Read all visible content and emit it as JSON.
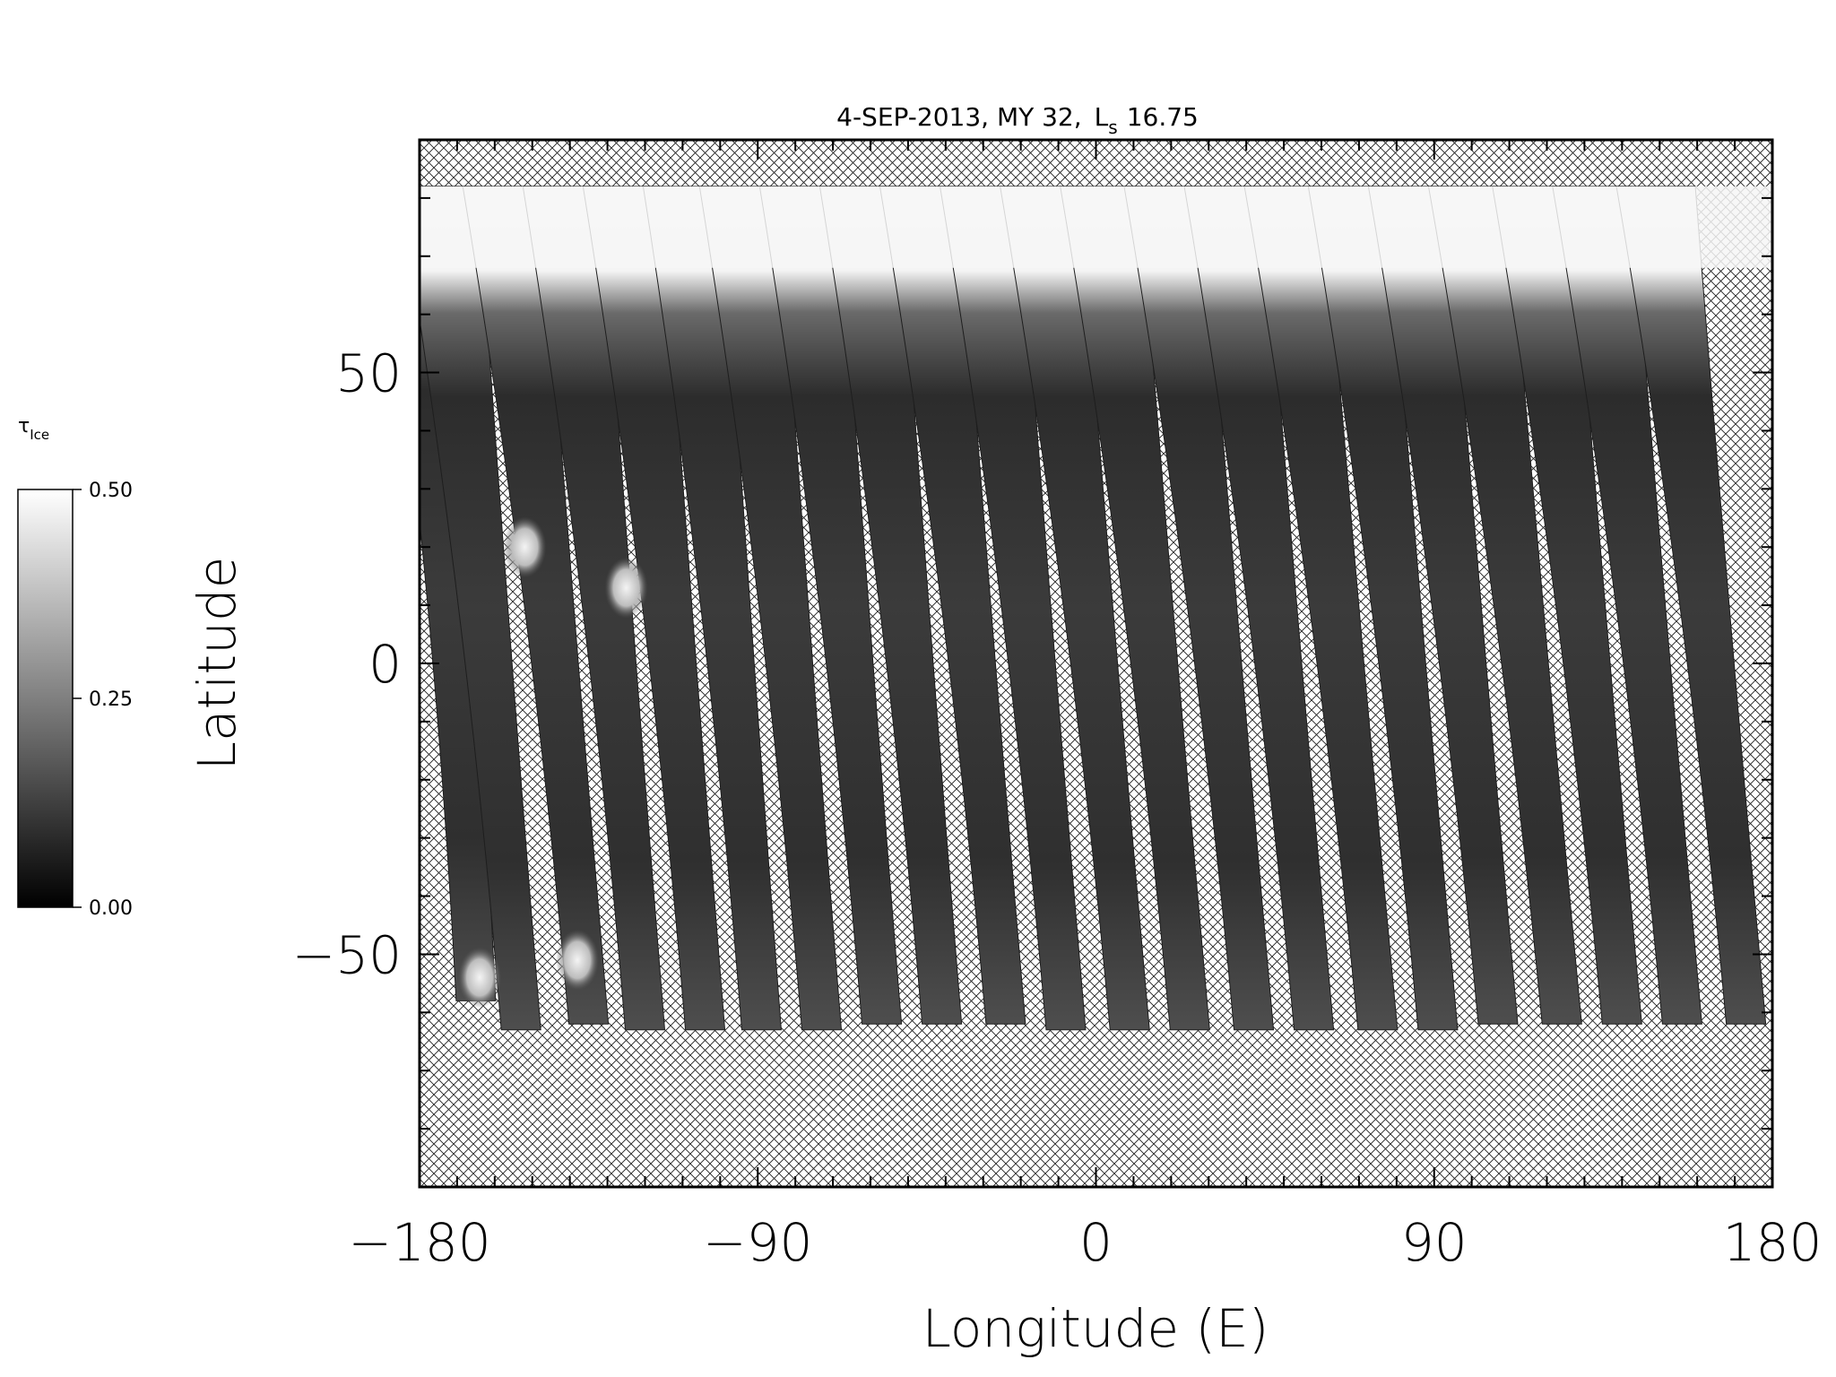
{
  "chart_data": {
    "type": "heatmap",
    "title": {
      "date": "4-SEP-2013, MY 32,",
      "ls_symbol": "L",
      "ls_sub": "s",
      "ls_value": "16.75"
    },
    "xlabel": "Longitude (E)",
    "ylabel": "Latitude",
    "xlim": [
      -180,
      180
    ],
    "ylim": [
      -90,
      90
    ],
    "x_ticks": [
      {
        "value": -180,
        "label": "−180"
      },
      {
        "value": -90,
        "label": "−90"
      },
      {
        "value": 0,
        "label": "0"
      },
      {
        "value": 90,
        "label": "90"
      },
      {
        "value": 180,
        "label": "180"
      }
    ],
    "y_ticks": [
      {
        "value": 50,
        "label": "50"
      },
      {
        "value": 0,
        "label": "0"
      },
      {
        "value": -50,
        "label": "−50"
      }
    ],
    "colorbar": {
      "label_symbol": "τ",
      "label_sub": "Ice",
      "range": [
        0.0,
        0.5
      ],
      "ticks": [
        {
          "value": 0.5,
          "label": "0.50"
        },
        {
          "value": 0.25,
          "label": "0.25"
        },
        {
          "value": 0.0,
          "label": "0.00"
        }
      ],
      "color_low": "#000000",
      "color_high": "#ffffff"
    },
    "missing_data": "crosshatch",
    "colors": {
      "hatch": "#222222",
      "swath_base": "#3a3a3a",
      "polar_hood": "#f6f6f6"
    },
    "swaths": [
      {
        "lon_south": -165,
        "lon_north": -180,
        "lat_south": -58,
        "lat_north": 82
      },
      {
        "lon_south": -153,
        "lon_north": -175,
        "lat_south": -63,
        "lat_north": 82
      },
      {
        "lon_south": -135,
        "lon_north": -158,
        "lat_south": -62,
        "lat_north": 82
      },
      {
        "lon_south": -120,
        "lon_north": -142,
        "lat_south": -63,
        "lat_north": 82
      },
      {
        "lon_south": -104,
        "lon_north": -126,
        "lat_south": -63,
        "lat_north": 82
      },
      {
        "lon_south": -89,
        "lon_north": -110,
        "lat_south": -63,
        "lat_north": 82
      },
      {
        "lon_south": -73,
        "lon_north": -95,
        "lat_south": -63,
        "lat_north": 82
      },
      {
        "lon_south": -57,
        "lon_north": -79,
        "lat_south": -62,
        "lat_north": 82
      },
      {
        "lon_south": -41,
        "lon_north": -63,
        "lat_south": -62,
        "lat_north": 82
      },
      {
        "lon_south": -24,
        "lon_north": -47,
        "lat_south": -62,
        "lat_north": 82
      },
      {
        "lon_south": -8,
        "lon_north": -31,
        "lat_south": -63,
        "lat_north": 82
      },
      {
        "lon_south": 9,
        "lon_north": -15,
        "lat_south": -63,
        "lat_north": 82
      },
      {
        "lon_south": 25,
        "lon_north": 1,
        "lat_south": -63,
        "lat_north": 82
      },
      {
        "lon_south": 42,
        "lon_north": 18,
        "lat_south": -63,
        "lat_north": 82
      },
      {
        "lon_south": 58,
        "lon_north": 34,
        "lat_south": -63,
        "lat_north": 82
      },
      {
        "lon_south": 75,
        "lon_north": 50,
        "lat_south": -63,
        "lat_north": 82
      },
      {
        "lon_south": 91,
        "lon_north": 67,
        "lat_south": -63,
        "lat_north": 82
      },
      {
        "lon_south": 107,
        "lon_north": 83,
        "lat_south": -62,
        "lat_north": 82
      },
      {
        "lon_south": 124,
        "lon_north": 99,
        "lat_south": -62,
        "lat_north": 82
      },
      {
        "lon_south": 140,
        "lon_north": 116,
        "lat_south": -62,
        "lat_north": 82
      },
      {
        "lon_south": 156,
        "lon_north": 132,
        "lat_south": -62,
        "lat_north": 82
      },
      {
        "lon_south": 173,
        "lon_north": 149,
        "lat_south": -62,
        "lat_north": 82
      }
    ],
    "bright_spots": [
      {
        "lon": -152,
        "lat": 20
      },
      {
        "lon": -125,
        "lat": 13
      },
      {
        "lon": -164,
        "lat": -54
      },
      {
        "lon": -138,
        "lat": -51
      }
    ]
  }
}
